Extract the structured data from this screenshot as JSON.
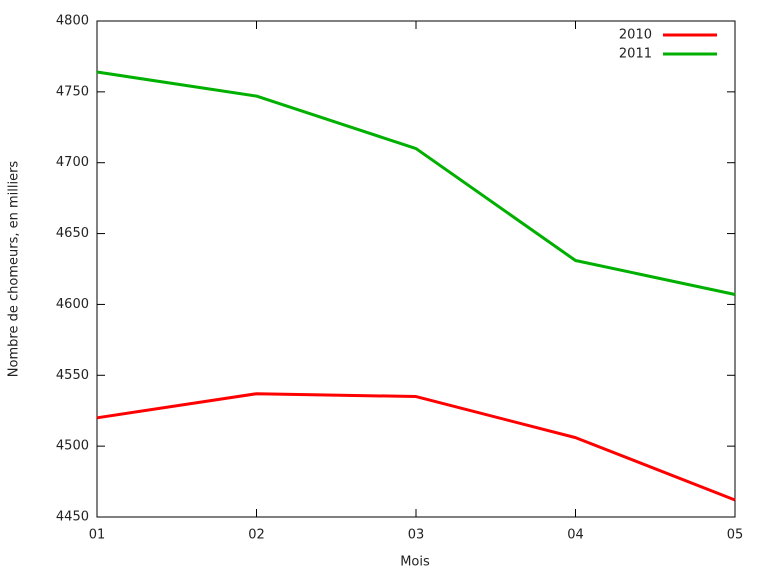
{
  "chart_data": {
    "type": "line",
    "x_label": "Mois",
    "y_label": "Nombre de chomeurs, en milliers",
    "categories": [
      "01",
      "02",
      "03",
      "04",
      "05"
    ],
    "series": [
      {
        "name": "2010",
        "color": "#ff0000",
        "values": [
          4520,
          4537,
          4535,
          4506,
          4462
        ]
      },
      {
        "name": "2011",
        "color": "#00b000",
        "values": [
          4764,
          4747,
          4710,
          4631,
          4607
        ]
      }
    ],
    "ylim": [
      4450,
      4800
    ],
    "yticks": [
      4450,
      4500,
      4550,
      4600,
      4650,
      4700,
      4750,
      4800
    ],
    "legend": "top-right"
  }
}
